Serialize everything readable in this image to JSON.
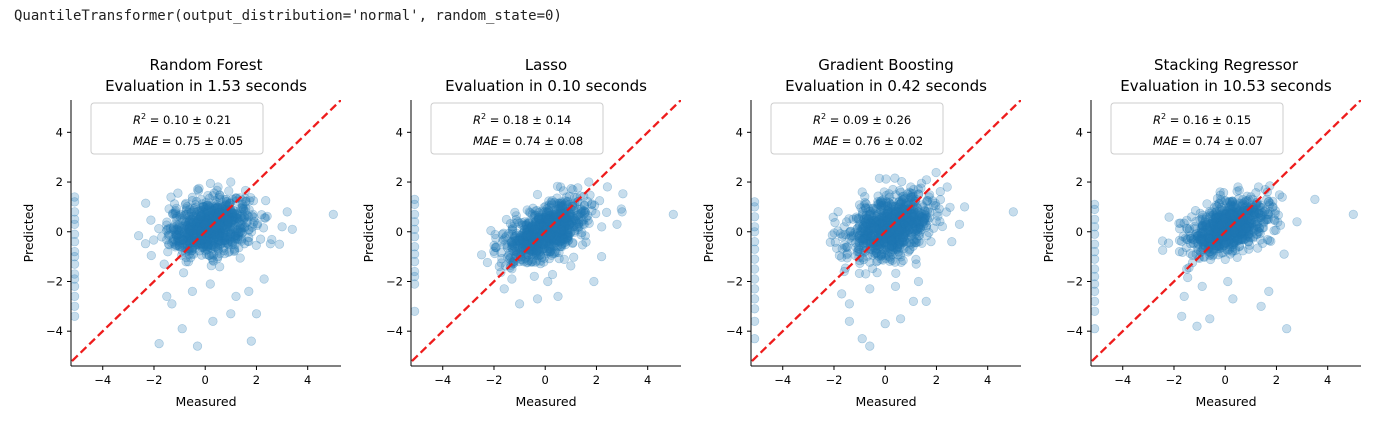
{
  "output_line": "QuantileTransformer(output_distribution='normal', random_state=0)",
  "chart_data": [
    {
      "type": "scatter",
      "title": "Random Forest",
      "subtitle": "Evaluation in 1.53 seconds",
      "xlabel": "Measured",
      "ylabel": "Predicted",
      "xlim": [
        -5.2,
        5.3
      ],
      "ylim": [
        -5.4,
        5.3
      ],
      "xticks": [
        -4,
        -2,
        0,
        2,
        4
      ],
      "yticks": [
        -4,
        -2,
        0,
        2,
        4
      ],
      "reference_line": {
        "from": [
          -5.2,
          -5.2
        ],
        "to": [
          5.3,
          5.3
        ],
        "color": "#ee1c1c",
        "style": "dashed"
      },
      "legend": {
        "placement": "top-left",
        "r2": "0.10 ± 0.21",
        "mae": "0.75 ± 0.05"
      },
      "point_color": "#1f77b4",
      "point_cloud": {
        "center": [
          0.2,
          0.2
        ],
        "x_spread": 1.0,
        "slope": 0.2,
        "y_spread": 0.55
      },
      "points": [
        [
          -1.8,
          -4.5
        ],
        [
          -0.9,
          -3.9
        ],
        [
          -0.3,
          -4.6
        ],
        [
          0.3,
          -3.6
        ],
        [
          1.0,
          -3.3
        ],
        [
          1.8,
          -4.4
        ],
        [
          2.0,
          -3.3
        ],
        [
          -1.5,
          -2.6
        ],
        [
          -1.3,
          -2.9
        ],
        [
          -0.5,
          -2.4
        ],
        [
          0.2,
          -2.1
        ],
        [
          1.2,
          -2.6
        ],
        [
          1.7,
          -2.4
        ],
        [
          2.3,
          -1.9
        ],
        [
          -1.6,
          -1.3
        ],
        [
          2.9,
          -0.5
        ],
        [
          3.0,
          0.2
        ],
        [
          3.4,
          0.1
        ],
        [
          3.2,
          0.8
        ],
        [
          5.0,
          0.7
        ],
        [
          1.0,
          2.0
        ],
        [
          -0.3,
          1.7
        ],
        [
          0.5,
          1.8
        ]
      ],
      "axis_points": [
        1.4,
        1.2,
        0.8,
        0.5,
        0.3,
        -0.1,
        -0.4,
        -0.8,
        -1.0,
        -1.3,
        -1.7,
        -1.9,
        -2.2,
        -2.6,
        -3.0,
        -3.4
      ]
    },
    {
      "type": "scatter",
      "title": "Lasso",
      "subtitle": "Evaluation in 0.10 seconds",
      "xlabel": "Measured",
      "ylabel": "Predicted",
      "xlim": [
        -5.2,
        5.3
      ],
      "ylim": [
        -5.4,
        5.3
      ],
      "xticks": [
        -4,
        -2,
        0,
        2,
        4
      ],
      "yticks": [
        -4,
        -2,
        0,
        2,
        4
      ],
      "reference_line": {
        "from": [
          -5.2,
          -5.2
        ],
        "to": [
          5.3,
          5.3
        ],
        "color": "#ee1c1c",
        "style": "dashed"
      },
      "legend": {
        "placement": "top-left",
        "r2": "0.18 ± 0.14",
        "mae": "0.74 ± 0.08"
      },
      "point_color": "#1f77b4",
      "point_cloud": {
        "center": [
          0.0,
          0.0
        ],
        "x_spread": 1.0,
        "slope": 0.4,
        "y_spread": 0.5
      },
      "points": [
        [
          -1.6,
          -2.3
        ],
        [
          -1.0,
          -2.9
        ],
        [
          -0.3,
          -2.7
        ],
        [
          0.5,
          -2.6
        ],
        [
          1.9,
          -2.0
        ],
        [
          -1.3,
          -1.9
        ],
        [
          0.1,
          -2.0
        ],
        [
          2.2,
          -1.0
        ],
        [
          2.8,
          0.3
        ],
        [
          3.0,
          0.8
        ],
        [
          5.0,
          0.7
        ],
        [
          1.7,
          2.0
        ],
        [
          0.6,
          1.8
        ],
        [
          -0.3,
          1.5
        ]
      ],
      "axis_points": [
        1.3,
        1.1,
        0.7,
        0.4,
        0.1,
        -0.2,
        -0.6,
        -0.9,
        -1.2,
        -1.6,
        -1.8,
        -2.1,
        -3.2
      ]
    },
    {
      "type": "scatter",
      "title": "Gradient Boosting",
      "subtitle": "Evaluation in 0.42 seconds",
      "xlabel": "Measured",
      "ylabel": "Predicted",
      "xlim": [
        -5.2,
        5.3
      ],
      "ylim": [
        -5.4,
        5.3
      ],
      "xticks": [
        -4,
        -2,
        0,
        2,
        4
      ],
      "yticks": [
        -4,
        -2,
        0,
        2,
        4
      ],
      "reference_line": {
        "from": [
          -5.2,
          -5.2
        ],
        "to": [
          5.3,
          5.3
        ],
        "color": "#ee1c1c",
        "style": "dashed"
      },
      "legend": {
        "placement": "top-left",
        "r2": "0.09 ± 0.26",
        "mae": "0.76 ± 0.02"
      },
      "point_color": "#1f77b4",
      "point_cloud": {
        "center": [
          0.2,
          0.2
        ],
        "x_spread": 1.0,
        "slope": 0.3,
        "y_spread": 0.6
      },
      "points": [
        [
          -1.4,
          -3.6
        ],
        [
          -0.9,
          -4.3
        ],
        [
          -0.6,
          -4.6
        ],
        [
          0.0,
          -3.7
        ],
        [
          0.6,
          -3.5
        ],
        [
          1.1,
          -2.8
        ],
        [
          1.6,
          -2.8
        ],
        [
          -1.7,
          -2.5
        ],
        [
          -1.4,
          -2.9
        ],
        [
          -0.6,
          -2.3
        ],
        [
          0.4,
          -2.2
        ],
        [
          1.3,
          -2.0
        ],
        [
          -1.6,
          -1.6
        ],
        [
          2.6,
          -0.4
        ],
        [
          2.9,
          0.3
        ],
        [
          3.1,
          1.0
        ],
        [
          5.0,
          0.8
        ],
        [
          -0.9,
          1.6
        ],
        [
          0.3,
          1.7
        ],
        [
          1.0,
          1.8
        ]
      ],
      "axis_points": [
        1.2,
        1.0,
        0.6,
        0.2,
        0.0,
        -0.4,
        -0.7,
        -1.1,
        -1.5,
        -1.9,
        -2.3,
        -2.7,
        -3.1,
        -3.6,
        -4.3
      ]
    },
    {
      "type": "scatter",
      "title": "Stacking Regressor",
      "subtitle": "Evaluation in 10.53 seconds",
      "xlabel": "Measured",
      "ylabel": "Predicted",
      "xlim": [
        -5.2,
        5.3
      ],
      "ylim": [
        -5.4,
        5.3
      ],
      "xticks": [
        -4,
        -2,
        0,
        2,
        4
      ],
      "yticks": [
        -4,
        -2,
        0,
        2,
        4
      ],
      "reference_line": {
        "from": [
          -5.2,
          -5.2
        ],
        "to": [
          5.3,
          5.3
        ],
        "color": "#ee1c1c",
        "style": "dashed"
      },
      "legend": {
        "placement": "top-left",
        "r2": "0.16 ± 0.15",
        "mae": "0.74 ± 0.07"
      },
      "point_color": "#1f77b4",
      "point_cloud": {
        "center": [
          0.1,
          0.2
        ],
        "x_spread": 1.0,
        "slope": 0.3,
        "y_spread": 0.5
      },
      "points": [
        [
          -1.7,
          -3.4
        ],
        [
          -1.1,
          -3.8
        ],
        [
          -0.6,
          -3.5
        ],
        [
          0.3,
          -2.7
        ],
        [
          1.4,
          -3.0
        ],
        [
          2.4,
          -3.9
        ],
        [
          -1.6,
          -2.6
        ],
        [
          -0.9,
          -2.2
        ],
        [
          0.1,
          -2.0
        ],
        [
          1.7,
          -2.4
        ],
        [
          -1.5,
          -1.5
        ],
        [
          2.3,
          -0.9
        ],
        [
          2.8,
          0.4
        ],
        [
          3.5,
          1.3
        ],
        [
          5.0,
          0.7
        ],
        [
          0.5,
          1.8
        ],
        [
          -0.2,
          1.6
        ],
        [
          1.3,
          1.8
        ]
      ],
      "axis_points": [
        1.1,
        0.9,
        0.5,
        0.2,
        -0.1,
        -0.5,
        -0.8,
        -1.1,
        -1.5,
        -1.8,
        -2.1,
        -2.4,
        -2.8,
        -3.2,
        -3.9
      ]
    }
  ]
}
